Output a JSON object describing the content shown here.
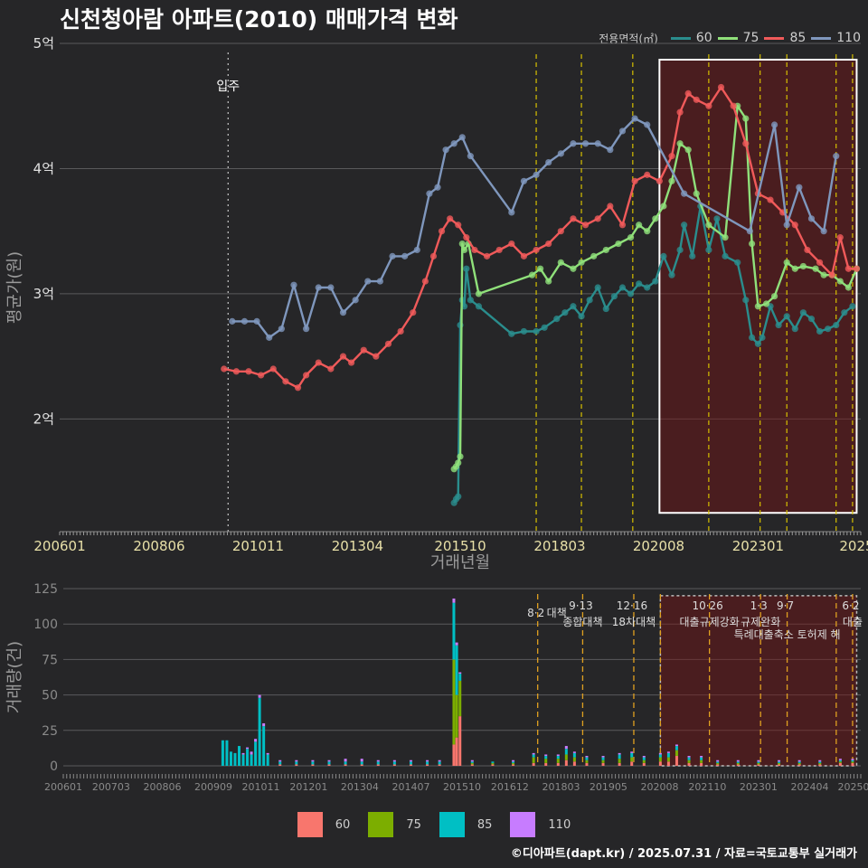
{
  "title": "신천청아람 아파트(2010) 매매가격 변화",
  "legend": {
    "title": "전용면적(㎡)",
    "items": [
      {
        "label": "60",
        "line_color": "#2a8d8d",
        "bar_color": "#f8766d"
      },
      {
        "label": "75",
        "line_color": "#8fe07a",
        "bar_color": "#7cae00"
      },
      {
        "label": "85",
        "line_color": "#f05a5a",
        "bar_color": "#00bfc4"
      },
      {
        "label": "110",
        "line_color": "#7f97bd",
        "bar_color": "#c77cff"
      }
    ]
  },
  "credit": "©디아파트(dapt.kr) / 2025.07.31 / 자료=국토교통부 실거래가",
  "chart_data": [
    {
      "type": "line",
      "title": "신천청아람 아파트(2010) 매매가격 변화",
      "xlabel": "거래년월",
      "ylabel": "평균가(원)",
      "x_ticks": [
        "200601",
        "200806",
        "201011",
        "201304",
        "201510",
        "201803",
        "202008",
        "202301",
        "2025"
      ],
      "x_tick_years": [
        2006.0,
        2008.42,
        2010.83,
        2013.25,
        2015.75,
        2018.17,
        2020.58,
        2023.0,
        2025.4
      ],
      "xlim": [
        2006.0,
        2025.5
      ],
      "ylim": [
        1.1,
        5.0
      ],
      "y_ticks": [
        2,
        3,
        4,
        5
      ],
      "y_tick_labels": [
        "2억",
        "3억",
        "4억",
        "5억"
      ],
      "y_unit": "억원",
      "annotation": {
        "label": "입주",
        "x": 2010.1
      },
      "policy_lines": [
        2017.6,
        2018.7,
        2019.95,
        2021.8,
        2023.05,
        2023.7,
        2024.9,
        2025.3
      ],
      "highlight_region": {
        "x_start": 2020.6,
        "x_end": 2025.4,
        "y_start": 1.25,
        "y_end": 4.87
      },
      "series": [
        {
          "name": "60",
          "color": "#2a8d8d",
          "x": [
            2015.6,
            2015.65,
            2015.7,
            2015.75,
            2015.8,
            2015.85,
            2015.9,
            2016.0,
            2016.2,
            2017.0,
            2017.3,
            2017.6,
            2017.8,
            2018.1,
            2018.3,
            2018.5,
            2018.7,
            2018.9,
            2019.1,
            2019.3,
            2019.5,
            2019.7,
            2019.9,
            2020.1,
            2020.3,
            2020.5,
            2020.7,
            2020.9,
            2021.1,
            2021.2,
            2021.4,
            2021.6,
            2021.8,
            2022.0,
            2022.2,
            2022.5,
            2022.7,
            2022.85,
            2023.0,
            2023.1,
            2023.3,
            2023.5,
            2023.7,
            2023.9,
            2024.1,
            2024.3,
            2024.5,
            2024.7,
            2024.9,
            2025.1,
            2025.3
          ],
          "y": [
            1.33,
            1.36,
            1.38,
            2.75,
            2.95,
            2.9,
            3.2,
            2.95,
            2.9,
            2.68,
            2.7,
            2.7,
            2.73,
            2.8,
            2.85,
            2.9,
            2.82,
            2.95,
            3.05,
            2.88,
            2.98,
            3.05,
            3.0,
            3.08,
            3.05,
            3.1,
            3.3,
            3.15,
            3.35,
            3.55,
            3.3,
            3.7,
            3.35,
            3.6,
            3.3,
            3.25,
            2.95,
            2.65,
            2.6,
            2.65,
            2.9,
            2.75,
            2.82,
            2.72,
            2.85,
            2.8,
            2.7,
            2.72,
            2.75,
            2.85,
            2.9
          ]
        },
        {
          "name": "75",
          "color": "#8fe07a",
          "x": [
            2015.6,
            2015.65,
            2015.7,
            2015.75,
            2015.8,
            2015.85,
            2015.95,
            2016.2,
            2017.5,
            2017.7,
            2017.9,
            2018.2,
            2018.5,
            2018.7,
            2019.0,
            2019.3,
            2019.6,
            2019.9,
            2020.1,
            2020.3,
            2020.5,
            2020.7,
            2020.9,
            2021.1,
            2021.3,
            2021.5,
            2021.8,
            2022.2,
            2022.5,
            2022.7,
            2022.85,
            2023.0,
            2023.2,
            2023.4,
            2023.7,
            2023.9,
            2024.1,
            2024.4,
            2024.6,
            2024.8,
            2025.0,
            2025.2,
            2025.4
          ],
          "y": [
            1.6,
            1.62,
            1.65,
            1.7,
            3.4,
            3.35,
            3.4,
            3.0,
            3.15,
            3.2,
            3.1,
            3.25,
            3.2,
            3.25,
            3.3,
            3.35,
            3.4,
            3.45,
            3.55,
            3.5,
            3.6,
            3.7,
            3.9,
            4.2,
            4.15,
            3.8,
            3.55,
            3.45,
            4.5,
            4.4,
            3.4,
            2.9,
            2.92,
            2.98,
            3.25,
            3.2,
            3.22,
            3.2,
            3.15,
            3.15,
            3.1,
            3.05,
            3.2
          ]
        },
        {
          "name": "85",
          "color": "#f05a5a",
          "x": [
            2010.0,
            2010.3,
            2010.6,
            2010.9,
            2011.2,
            2011.5,
            2011.8,
            2012.0,
            2012.3,
            2012.6,
            2012.9,
            2013.1,
            2013.4,
            2013.7,
            2014.0,
            2014.3,
            2014.6,
            2014.9,
            2015.1,
            2015.3,
            2015.5,
            2015.7,
            2015.9,
            2016.1,
            2016.4,
            2016.7,
            2017.0,
            2017.3,
            2017.6,
            2017.9,
            2018.2,
            2018.5,
            2018.8,
            2019.1,
            2019.4,
            2019.7,
            2020.0,
            2020.3,
            2020.6,
            2020.9,
            2021.1,
            2021.3,
            2021.5,
            2021.8,
            2022.1,
            2022.4,
            2022.7,
            2023.0,
            2023.3,
            2023.6,
            2023.9,
            2024.2,
            2024.5,
            2024.8,
            2025.0,
            2025.2,
            2025.4
          ],
          "y": [
            2.4,
            2.38,
            2.38,
            2.35,
            2.4,
            2.3,
            2.25,
            2.35,
            2.45,
            2.4,
            2.5,
            2.45,
            2.55,
            2.5,
            2.6,
            2.7,
            2.85,
            3.1,
            3.3,
            3.5,
            3.6,
            3.55,
            3.45,
            3.35,
            3.3,
            3.35,
            3.4,
            3.3,
            3.35,
            3.4,
            3.5,
            3.6,
            3.55,
            3.6,
            3.7,
            3.55,
            3.9,
            3.95,
            3.9,
            4.1,
            4.45,
            4.6,
            4.55,
            4.5,
            4.65,
            4.5,
            4.2,
            3.8,
            3.75,
            3.65,
            3.55,
            3.35,
            3.25,
            3.15,
            3.45,
            3.2,
            3.2
          ]
        },
        {
          "name": "110",
          "color": "#7f97bd",
          "x": [
            2010.2,
            2010.5,
            2010.8,
            2011.1,
            2011.4,
            2011.7,
            2012.0,
            2012.3,
            2012.6,
            2012.9,
            2013.2,
            2013.5,
            2013.8,
            2014.1,
            2014.4,
            2014.7,
            2015.0,
            2015.2,
            2015.4,
            2015.6,
            2015.8,
            2016.0,
            2017.0,
            2017.3,
            2017.6,
            2017.9,
            2018.2,
            2018.5,
            2018.8,
            2019.1,
            2019.4,
            2019.7,
            2020.0,
            2020.3,
            2021.2,
            2022.8,
            2023.4,
            2023.7,
            2024.0,
            2024.3,
            2024.6,
            2024.9
          ],
          "y": [
            2.78,
            2.78,
            2.78,
            2.65,
            2.72,
            3.07,
            2.72,
            3.05,
            3.05,
            2.85,
            2.95,
            3.1,
            3.1,
            3.3,
            3.3,
            3.35,
            3.8,
            3.85,
            4.15,
            4.2,
            4.25,
            4.1,
            3.65,
            3.9,
            3.95,
            4.05,
            4.12,
            4.2,
            4.2,
            4.2,
            4.15,
            4.3,
            4.4,
            4.35,
            3.8,
            3.5,
            4.35,
            3.55,
            3.85,
            3.6,
            3.5,
            4.1
          ]
        }
      ]
    },
    {
      "type": "bar",
      "title": "",
      "xlabel": "",
      "ylabel": "거래량(건)",
      "x_ticks": [
        "200601",
        "200703",
        "200806",
        "200909",
        "201011",
        "201201",
        "201304",
        "201407",
        "201510",
        "201612",
        "201803",
        "201905",
        "202008",
        "202110",
        "202301",
        "202404",
        "202506"
      ],
      "x_tick_years": [
        2006.0,
        2007.17,
        2008.42,
        2009.67,
        2010.83,
        2012.0,
        2013.25,
        2014.5,
        2015.75,
        2016.92,
        2018.17,
        2019.33,
        2020.58,
        2021.75,
        2023.0,
        2024.25,
        2025.4
      ],
      "xlim": [
        2006.0,
        2025.5
      ],
      "ylim": [
        0,
        125
      ],
      "y_ticks": [
        0,
        25,
        50,
        75,
        100,
        125
      ],
      "policy_lines": [
        2017.6,
        2018.7,
        2019.95,
        2020.6,
        2021.8,
        2023.05,
        2023.7,
        2024.9,
        2025.3
      ],
      "highlight_region": {
        "x_start": 2020.6,
        "x_end": 2025.4,
        "y_start": 0,
        "y_end": 120
      },
      "policy_labels": [
        {
          "date": "8·2",
          "text": "대책",
          "x": 2017.6
        },
        {
          "date": "9·13",
          "text": "종합대책",
          "x": 2018.7
        },
        {
          "date": "12·16",
          "text": "18차대책",
          "x": 2019.95
        },
        {
          "date": "10·26",
          "text": "대출규제강화",
          "x": 2021.8
        },
        {
          "date": "1·3",
          "text": "규제완화",
          "x": 2023.05
        },
        {
          "date": "9·7",
          "text": "특례대출축소 토허제 해",
          "x": 2023.7
        },
        {
          "date": "6·2",
          "text": "대출",
          "x": 2025.3
        }
      ],
      "bars": [
        {
          "x": 2009.9,
          "values": [
            0,
            0,
            18,
            0
          ]
        },
        {
          "x": 2010.0,
          "values": [
            0,
            0,
            18,
            0
          ]
        },
        {
          "x": 2010.1,
          "values": [
            0,
            0,
            10,
            0
          ]
        },
        {
          "x": 2010.2,
          "values": [
            0,
            0,
            9,
            0
          ]
        },
        {
          "x": 2010.3,
          "values": [
            0,
            0,
            14,
            0
          ]
        },
        {
          "x": 2010.4,
          "values": [
            0,
            0,
            8,
            1
          ]
        },
        {
          "x": 2010.5,
          "values": [
            0,
            0,
            12,
            1
          ]
        },
        {
          "x": 2010.6,
          "values": [
            0,
            0,
            8,
            2
          ]
        },
        {
          "x": 2010.7,
          "values": [
            0,
            0,
            17,
            2
          ]
        },
        {
          "x": 2010.8,
          "values": [
            0,
            0,
            48,
            2
          ]
        },
        {
          "x": 2010.9,
          "values": [
            0,
            0,
            28,
            2
          ]
        },
        {
          "x": 2011.0,
          "values": [
            0,
            0,
            8,
            1
          ]
        },
        {
          "x": 2011.3,
          "values": [
            1,
            0,
            2,
            1
          ]
        },
        {
          "x": 2011.7,
          "values": [
            1,
            0,
            2,
            1
          ]
        },
        {
          "x": 2012.1,
          "values": [
            1,
            0,
            2,
            1
          ]
        },
        {
          "x": 2012.5,
          "values": [
            1,
            0,
            2,
            1
          ]
        },
        {
          "x": 2012.9,
          "values": [
            1,
            0,
            2,
            2
          ]
        },
        {
          "x": 2013.3,
          "values": [
            1,
            0,
            2,
            2
          ]
        },
        {
          "x": 2013.7,
          "values": [
            1,
            0,
            2,
            1
          ]
        },
        {
          "x": 2014.1,
          "values": [
            1,
            0,
            2,
            1
          ]
        },
        {
          "x": 2014.5,
          "values": [
            1,
            0,
            2,
            1
          ]
        },
        {
          "x": 2014.9,
          "values": [
            1,
            0,
            2,
            1
          ]
        },
        {
          "x": 2015.2,
          "values": [
            1,
            0,
            2,
            1
          ]
        },
        {
          "x": 2015.55,
          "values": [
            15,
            60,
            40,
            3
          ]
        },
        {
          "x": 2015.62,
          "values": [
            20,
            30,
            35,
            2
          ]
        },
        {
          "x": 2015.7,
          "values": [
            35,
            25,
            5,
            1
          ]
        },
        {
          "x": 2016.0,
          "values": [
            1,
            1,
            1,
            1
          ]
        },
        {
          "x": 2016.5,
          "values": [
            1,
            1,
            1,
            0
          ]
        },
        {
          "x": 2017.0,
          "values": [
            1,
            1,
            1,
            1
          ]
        },
        {
          "x": 2017.5,
          "values": [
            2,
            4,
            2,
            1
          ]
        },
        {
          "x": 2017.8,
          "values": [
            2,
            3,
            2,
            1
          ]
        },
        {
          "x": 2018.1,
          "values": [
            2,
            3,
            2,
            1
          ]
        },
        {
          "x": 2018.3,
          "values": [
            4,
            4,
            4,
            2
          ]
        },
        {
          "x": 2018.5,
          "values": [
            3,
            3,
            3,
            1
          ]
        },
        {
          "x": 2018.8,
          "values": [
            2,
            2,
            2,
            1
          ]
        },
        {
          "x": 2019.2,
          "values": [
            2,
            2,
            2,
            1
          ]
        },
        {
          "x": 2019.6,
          "values": [
            2,
            3,
            3,
            1
          ]
        },
        {
          "x": 2019.9,
          "values": [
            3,
            3,
            3,
            1
          ]
        },
        {
          "x": 2020.2,
          "values": [
            2,
            2,
            2,
            1
          ]
        },
        {
          "x": 2020.6,
          "values": [
            3,
            3,
            2,
            1
          ]
        },
        {
          "x": 2020.8,
          "values": [
            3,
            3,
            3,
            1
          ]
        },
        {
          "x": 2021.0,
          "values": [
            7,
            4,
            3,
            1
          ]
        },
        {
          "x": 2021.3,
          "values": [
            2,
            2,
            2,
            1
          ]
        },
        {
          "x": 2021.6,
          "values": [
            2,
            2,
            2,
            1
          ]
        },
        {
          "x": 2022.0,
          "values": [
            1,
            1,
            1,
            1
          ]
        },
        {
          "x": 2022.5,
          "values": [
            1,
            1,
            1,
            1
          ]
        },
        {
          "x": 2023.0,
          "values": [
            1,
            1,
            1,
            1
          ]
        },
        {
          "x": 2023.5,
          "values": [
            1,
            1,
            1,
            1
          ]
        },
        {
          "x": 2024.0,
          "values": [
            1,
            1,
            1,
            1
          ]
        },
        {
          "x": 2024.5,
          "values": [
            1,
            1,
            1,
            1
          ]
        },
        {
          "x": 2025.0,
          "values": [
            2,
            1,
            1,
            1
          ]
        },
        {
          "x": 2025.3,
          "values": [
            2,
            1,
            1,
            1
          ]
        }
      ]
    }
  ]
}
